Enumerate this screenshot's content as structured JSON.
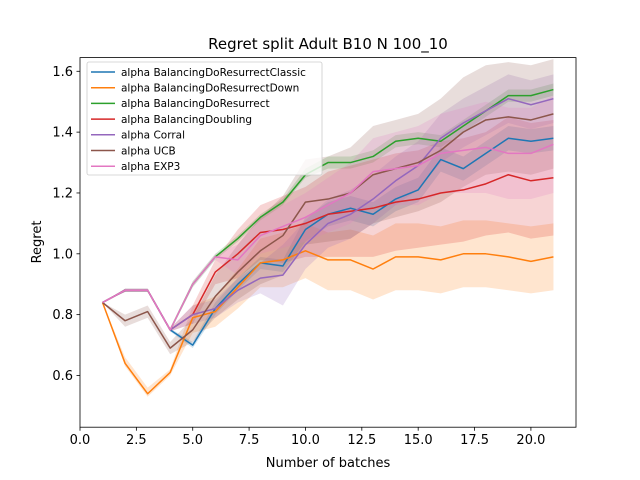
{
  "chart_data": {
    "type": "line",
    "title": "Regret split Adult B10 N 100_10",
    "xlabel": "Number of batches",
    "ylabel": "Regret",
    "xlim": [
      0.0,
      22.0
    ],
    "ylim": [
      0.43,
      1.645
    ],
    "xticks": [
      0.0,
      2.5,
      5.0,
      7.5,
      10.0,
      12.5,
      15.0,
      17.5,
      20.0
    ],
    "xtick_labels": [
      "0.0",
      "2.5",
      "5.0",
      "7.5",
      "10.0",
      "12.5",
      "15.0",
      "17.5",
      "20.0"
    ],
    "yticks": [
      0.6,
      0.8,
      1.0,
      1.2,
      1.4,
      1.6
    ],
    "ytick_labels": [
      "0.6",
      "0.8",
      "1.0",
      "1.2",
      "1.4",
      "1.6"
    ],
    "grid": false,
    "legend_position": "top-left",
    "x": [
      1,
      2,
      3,
      4,
      5,
      6,
      7,
      8,
      9,
      10,
      11,
      12,
      13,
      14,
      15,
      16,
      17,
      18,
      19,
      20,
      21
    ],
    "series": [
      {
        "name": "alpha BalancingDoResurrectClassic",
        "color": "#1f77b4",
        "values": [
          0.84,
          0.88,
          0.88,
          0.75,
          0.7,
          0.82,
          0.9,
          0.97,
          0.96,
          1.08,
          1.13,
          1.15,
          1.13,
          1.18,
          1.21,
          1.31,
          1.28,
          1.33,
          1.38,
          1.37,
          1.38
        ],
        "lower": [
          0.84,
          0.875,
          0.875,
          0.745,
          0.69,
          0.8,
          0.88,
          0.95,
          0.94,
          1.04,
          1.09,
          1.11,
          1.09,
          1.14,
          1.17,
          1.27,
          1.24,
          1.29,
          1.34,
          1.33,
          1.34
        ],
        "upper": [
          0.84,
          0.885,
          0.885,
          0.755,
          0.71,
          0.84,
          0.92,
          0.99,
          0.98,
          1.12,
          1.17,
          1.19,
          1.17,
          1.22,
          1.25,
          1.35,
          1.32,
          1.37,
          1.42,
          1.41,
          1.42
        ]
      },
      {
        "name": "alpha BalancingDoResurrectDown",
        "color": "#ff7f0e",
        "values": [
          0.84,
          0.64,
          0.54,
          0.61,
          0.79,
          0.81,
          0.89,
          0.97,
          0.98,
          1.01,
          0.98,
          0.98,
          0.95,
          0.99,
          0.99,
          0.98,
          1.0,
          1.0,
          0.99,
          0.975,
          0.99
        ],
        "lower": [
          0.84,
          0.63,
          0.53,
          0.6,
          0.74,
          0.76,
          0.82,
          0.89,
          0.89,
          0.92,
          0.88,
          0.88,
          0.85,
          0.88,
          0.88,
          0.87,
          0.89,
          0.89,
          0.88,
          0.87,
          0.88
        ],
        "upper": [
          0.84,
          0.66,
          0.56,
          0.62,
          0.83,
          0.86,
          0.95,
          1.05,
          1.07,
          1.1,
          1.07,
          1.08,
          1.06,
          1.1,
          1.1,
          1.09,
          1.11,
          1.11,
          1.1,
          1.09,
          1.1
        ]
      },
      {
        "name": "alpha BalancingDoResurrect",
        "color": "#2ca02c",
        "values": [
          0.84,
          0.88,
          0.88,
          0.75,
          0.9,
          0.99,
          1.05,
          1.12,
          1.17,
          1.26,
          1.3,
          1.3,
          1.32,
          1.37,
          1.38,
          1.37,
          1.42,
          1.47,
          1.52,
          1.52,
          1.54
        ],
        "lower": [
          0.84,
          0.875,
          0.875,
          0.745,
          0.89,
          0.98,
          1.04,
          1.11,
          1.16,
          1.25,
          1.28,
          1.28,
          1.3,
          1.35,
          1.36,
          1.35,
          1.4,
          1.45,
          1.5,
          1.5,
          1.52
        ],
        "upper": [
          0.84,
          0.885,
          0.885,
          0.755,
          0.91,
          1.0,
          1.06,
          1.13,
          1.18,
          1.28,
          1.32,
          1.32,
          1.34,
          1.39,
          1.4,
          1.39,
          1.44,
          1.49,
          1.54,
          1.54,
          1.56
        ]
      },
      {
        "name": "alpha BalancingDoubling",
        "color": "#d62728",
        "values": [
          0.84,
          0.88,
          0.88,
          0.75,
          0.8,
          0.94,
          1.0,
          1.07,
          1.08,
          1.1,
          1.13,
          1.14,
          1.15,
          1.17,
          1.18,
          1.2,
          1.21,
          1.23,
          1.26,
          1.24,
          1.25
        ],
        "lower": [
          0.84,
          0.875,
          0.875,
          0.745,
          0.77,
          0.9,
          0.92,
          0.98,
          0.97,
          0.99,
          0.99,
          0.99,
          0.99,
          1.01,
          1.02,
          1.03,
          1.04,
          1.06,
          1.07,
          1.05,
          1.06
        ],
        "upper": [
          0.84,
          0.885,
          0.885,
          0.755,
          0.83,
          0.98,
          1.08,
          1.16,
          1.19,
          1.22,
          1.27,
          1.29,
          1.31,
          1.33,
          1.34,
          1.37,
          1.38,
          1.4,
          1.45,
          1.43,
          1.44
        ]
      },
      {
        "name": "alpha Corral",
        "color": "#9467bd",
        "values": [
          0.84,
          0.88,
          0.88,
          0.75,
          0.8,
          0.82,
          0.88,
          0.92,
          0.93,
          1.03,
          1.1,
          1.13,
          1.18,
          1.24,
          1.29,
          1.38,
          1.43,
          1.47,
          1.51,
          1.49,
          1.51
        ],
        "lower": [
          0.84,
          0.875,
          0.875,
          0.745,
          0.77,
          0.79,
          0.84,
          0.87,
          0.83,
          0.95,
          1.02,
          1.05,
          1.1,
          1.16,
          1.21,
          1.3,
          1.35,
          1.39,
          1.43,
          1.41,
          1.43
        ],
        "upper": [
          0.84,
          0.885,
          0.885,
          0.755,
          0.83,
          0.85,
          0.92,
          0.97,
          1.03,
          1.11,
          1.18,
          1.21,
          1.26,
          1.32,
          1.37,
          1.46,
          1.51,
          1.55,
          1.59,
          1.57,
          1.59
        ]
      },
      {
        "name": "alpha UCB",
        "color": "#8c564b",
        "values": [
          0.84,
          0.78,
          0.81,
          0.69,
          0.75,
          0.86,
          0.94,
          1.01,
          1.06,
          1.17,
          1.18,
          1.2,
          1.26,
          1.28,
          1.3,
          1.34,
          1.4,
          1.44,
          1.45,
          1.44,
          1.46
        ],
        "lower": [
          0.84,
          0.76,
          0.79,
          0.67,
          0.71,
          0.79,
          0.85,
          0.9,
          0.93,
          1.03,
          1.04,
          1.05,
          1.1,
          1.12,
          1.14,
          1.17,
          1.22,
          1.26,
          1.27,
          1.26,
          1.28
        ],
        "upper": [
          0.84,
          0.8,
          0.83,
          0.71,
          0.79,
          0.93,
          1.03,
          1.12,
          1.19,
          1.31,
          1.32,
          1.35,
          1.42,
          1.44,
          1.46,
          1.51,
          1.58,
          1.62,
          1.63,
          1.62,
          1.64
        ]
      },
      {
        "name": "alpha EXP3",
        "color": "#e377c2",
        "values": [
          0.84,
          0.88,
          0.88,
          0.75,
          0.9,
          0.99,
          0.98,
          1.06,
          1.09,
          1.12,
          1.16,
          1.2,
          1.27,
          1.28,
          1.29,
          1.33,
          1.34,
          1.35,
          1.33,
          1.33,
          1.36
        ],
        "lower": [
          0.84,
          0.875,
          0.875,
          0.745,
          0.89,
          0.98,
          0.93,
          1.0,
          1.02,
          1.04,
          1.07,
          1.1,
          1.16,
          1.16,
          1.16,
          1.2,
          1.2,
          1.2,
          1.18,
          1.18,
          1.2
        ],
        "upper": [
          0.84,
          0.885,
          0.885,
          0.755,
          0.91,
          1.0,
          1.03,
          1.12,
          1.16,
          1.2,
          1.25,
          1.3,
          1.38,
          1.4,
          1.42,
          1.46,
          1.48,
          1.5,
          1.48,
          1.48,
          1.52
        ]
      }
    ]
  }
}
